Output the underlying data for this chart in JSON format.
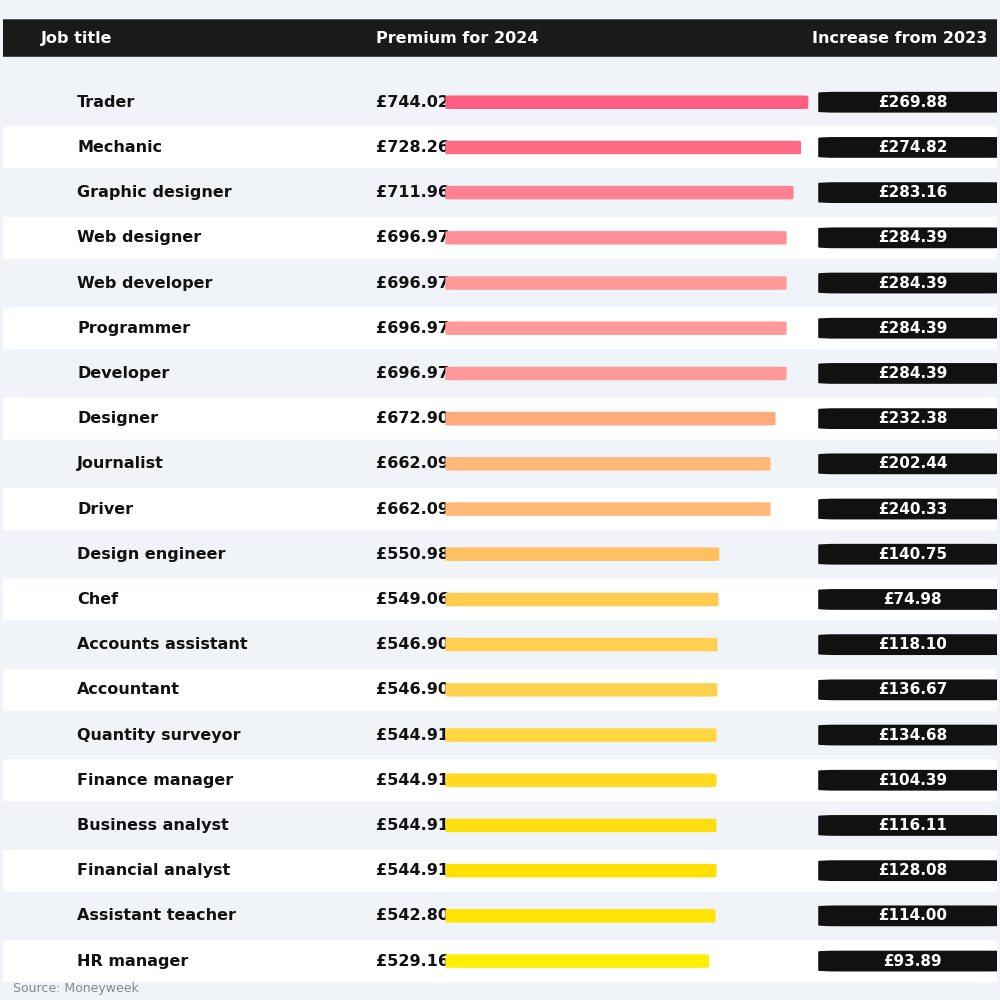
{
  "title_left": "Job title",
  "title_mid": "Premium for 2024",
  "title_right": "Increase from 2023",
  "source": "Source: Moneyweek",
  "header_bg": "#1a1a1a",
  "header_text": "#ffffff",
  "rows": [
    {
      "job": "Trader",
      "premium": 744.02,
      "increase": 269.88
    },
    {
      "job": "Mechanic",
      "premium": 728.26,
      "increase": 274.82
    },
    {
      "job": "Graphic designer",
      "premium": 711.96,
      "increase": 283.16
    },
    {
      "job": "Web designer",
      "premium": 696.97,
      "increase": 284.39
    },
    {
      "job": "Web developer",
      "premium": 696.97,
      "increase": 284.39
    },
    {
      "job": "Programmer",
      "premium": 696.97,
      "increase": 284.39
    },
    {
      "job": "Developer",
      "premium": 696.97,
      "increase": 284.39
    },
    {
      "job": "Designer",
      "premium": 672.9,
      "increase": 232.38
    },
    {
      "job": "Journalist",
      "premium": 662.09,
      "increase": 202.44
    },
    {
      "job": "Driver",
      "premium": 662.09,
      "increase": 240.33
    },
    {
      "job": "Design engineer",
      "premium": 550.98,
      "increase": 140.75
    },
    {
      "job": "Chef",
      "premium": 549.06,
      "increase": 74.98
    },
    {
      "job": "Accounts assistant",
      "premium": 546.9,
      "increase": 118.1
    },
    {
      "job": "Accountant",
      "premium": 546.9,
      "increase": 136.67
    },
    {
      "job": "Quantity surveyor",
      "premium": 544.91,
      "increase": 134.68
    },
    {
      "job": "Finance manager",
      "premium": 544.91,
      "increase": 104.39
    },
    {
      "job": "Business analyst",
      "premium": 544.91,
      "increase": 116.11
    },
    {
      "job": "Financial analyst",
      "premium": 544.91,
      "increase": 128.08
    },
    {
      "job": "Assistant teacher",
      "premium": 542.8,
      "increase": 114.0
    },
    {
      "job": "HR manager",
      "premium": 529.16,
      "increase": 93.89
    }
  ],
  "bar_colors": [
    "#ff5c82",
    "#ff6b85",
    "#ff8090",
    "#ff9098",
    "#ff9898",
    "#ff9898",
    "#ff9898",
    "#ffaa7a",
    "#ffb87a",
    "#ffb878",
    "#ffc060",
    "#ffca50",
    "#ffd050",
    "#ffd350",
    "#ffd640",
    "#ffda20",
    "#ffde10",
    "#ffe000",
    "#ffe500",
    "#ffee00"
  ],
  "row_bg_even": "#f0f4f8",
  "row_bg_odd": "#ffffff",
  "bg_color": "#f0f4f8",
  "bar_max": 744.02,
  "figsize": [
    10,
    10
  ],
  "dpi": 100
}
